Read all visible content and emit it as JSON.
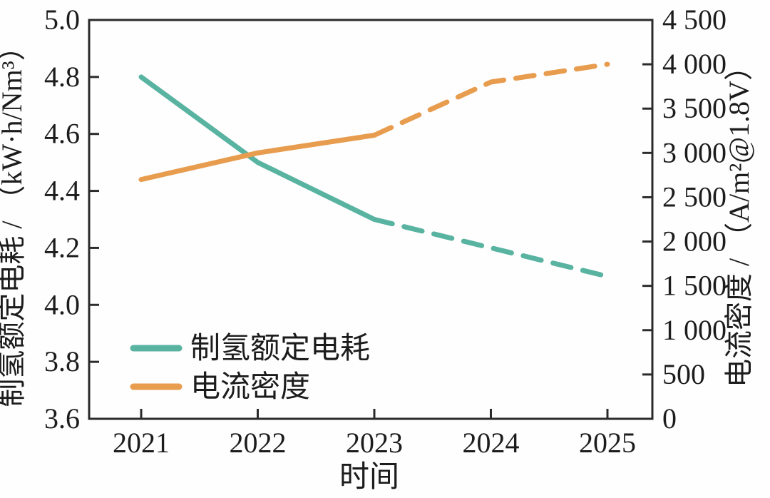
{
  "chart_data": {
    "type": "line",
    "x": [
      2021,
      2022,
      2023,
      2024,
      2025
    ],
    "x_axis": {
      "label": "时间",
      "tick_labels": [
        "2021",
        "2022",
        "2023",
        "2024",
        "2025"
      ]
    },
    "left_axis": {
      "label": "制氢额定电耗 / （kW·h/Nm³）",
      "min": 3.6,
      "max": 5.0,
      "tick_step": 0.2,
      "tick_values": [
        3.6,
        3.8,
        4.0,
        4.2,
        4.4,
        4.6,
        4.8,
        5.0
      ],
      "tick_labels": [
        "3.6",
        "3.8",
        "4.0",
        "4.2",
        "4.4",
        "4.6",
        "4.8",
        "5.0"
      ]
    },
    "right_axis": {
      "label": "电流密度 / （A/m²@1.8V）",
      "min": 0,
      "max": 4500,
      "tick_step": 500,
      "tick_values": [
        0,
        500,
        1000,
        1500,
        2000,
        2500,
        3000,
        3500,
        4000,
        4500
      ],
      "tick_labels": [
        "0",
        "500",
        "1 000",
        "1 500",
        "2 000",
        "2 500",
        "3 000",
        "3 500",
        "4 000",
        "4 500"
      ]
    },
    "series": [
      {
        "name": "制氢额定电耗",
        "axis": "left",
        "color": "#59b3a1",
        "values": [
          4.8,
          4.5,
          4.3,
          4.2,
          4.1
        ],
        "solid_until_index": 2,
        "note": "solid 2021-2023, dashed 2023-2025"
      },
      {
        "name": "电流密度",
        "axis": "right",
        "color": "#e79c4e",
        "values": [
          2700,
          3000,
          3200,
          3800,
          4000
        ],
        "solid_until_index": 2,
        "note": "solid 2021-2023, dashed 2023-2025"
      }
    ],
    "legend": {
      "position": "lower-left-inside",
      "entries": [
        "制氢额定电耗",
        "电流密度"
      ]
    },
    "grid": "off",
    "frame": "full-box",
    "colors": {
      "frame": "#2b2b2b",
      "text": "#1c1c1c",
      "series_consumption": "#59b3a1",
      "series_current_density": "#e79c4e"
    }
  }
}
